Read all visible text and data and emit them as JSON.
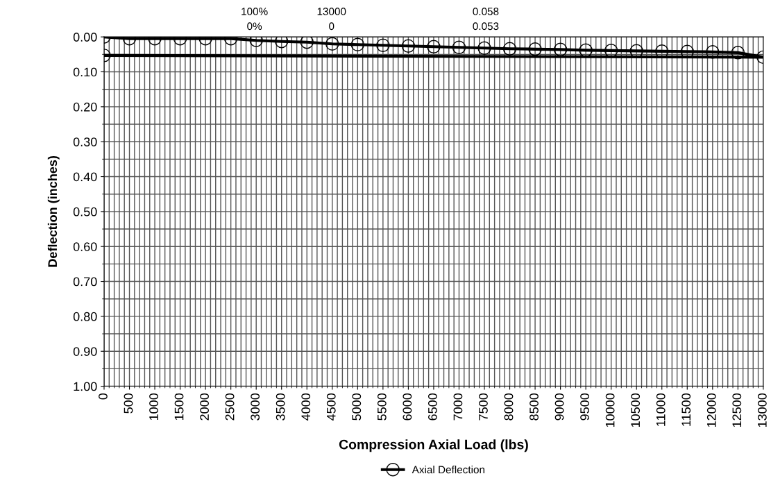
{
  "chart_data": {
    "type": "line",
    "xlabel": "Compression Axial Load (lbs)",
    "ylabel": "Deflection (inches)",
    "annotations": [
      "100%",
      "13000",
      "0.058",
      "0%",
      "0",
      "0.053"
    ],
    "series": [
      {
        "name": "Axial Deflection",
        "color": "#000000",
        "marker": "circle",
        "x": [
          0,
          500,
          1000,
          1500,
          2000,
          2500,
          3000,
          3500,
          4000,
          4500,
          5000,
          5500,
          6000,
          6500,
          7000,
          7500,
          8000,
          8500,
          9000,
          9500,
          10000,
          10500,
          11000,
          11500,
          12000,
          12500,
          13000,
          0
        ],
        "values": [
          0.0,
          0.005,
          0.005,
          0.005,
          0.005,
          0.005,
          0.01,
          0.013,
          0.015,
          0.02,
          0.022,
          0.024,
          0.026,
          0.028,
          0.03,
          0.032,
          0.034,
          0.035,
          0.036,
          0.038,
          0.039,
          0.04,
          0.041,
          0.042,
          0.043,
          0.045,
          0.058,
          0.053
        ]
      }
    ],
    "xlim": [
      0,
      13000
    ],
    "xticks": [
      0,
      500,
      1000,
      1500,
      2000,
      2500,
      3000,
      3500,
      4000,
      4500,
      5000,
      5500,
      6000,
      6500,
      7000,
      7500,
      8000,
      8500,
      9000,
      9500,
      10000,
      10500,
      11000,
      11500,
      12000,
      12500,
      13000
    ],
    "ylim": [
      1.0,
      0.0
    ],
    "yticks": [
      {
        "value": 0,
        "label": "0.00"
      },
      {
        "value": 0.1,
        "label": "0.10"
      },
      {
        "value": 0.2,
        "label": "0.20"
      },
      {
        "value": 0.3,
        "label": "0.30"
      },
      {
        "value": 0.4,
        "label": "0.40"
      },
      {
        "value": 0.5,
        "label": "0.50"
      },
      {
        "value": 0.6,
        "label": "0.60"
      },
      {
        "value": 0.7,
        "label": "0.70"
      },
      {
        "value": 0.8,
        "label": "0.80"
      },
      {
        "value": 0.9,
        "label": "0.90"
      },
      {
        "value": 1.0,
        "label": "1.00"
      }
    ],
    "grid": true,
    "legend": "bottom",
    "line_style": "solid"
  }
}
